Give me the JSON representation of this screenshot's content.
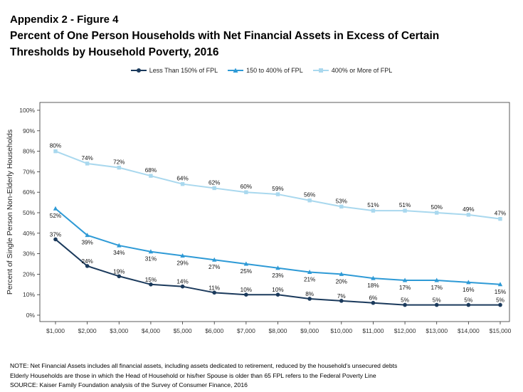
{
  "title_lines": [
    "Appendix 2 - Figure 4",
    "Percent of One Person Households with Net Financial Assets in Excess of Certain",
    "Thresholds by Household Poverty, 2016"
  ],
  "notes": [
    "NOTE: Net Financial Assets includes all financial assets, including assets dedicated to retirement, reduced by the household's unsecured debts",
    "Elderly Households are those in which the Head of Household or his/her Spouse is older than 65 FPL refers to the Federal Poverty Line",
    "SOURCE: Kaiser Family Foundation analysis of the Survey of Consumer Finance, 2016"
  ],
  "chart_data": {
    "type": "line",
    "title": "Percent of One Person Households with Net Financial Assets in Excess of Certain Thresholds by Household Poverty, 2016",
    "xlabel": "",
    "ylabel": "Percent of Single Person Non-Elderly Households",
    "categories": [
      "$1,000",
      "$2,000",
      "$3,000",
      "$4,000",
      "$5,000",
      "$6,000",
      "$7,000",
      "$8,000",
      "$9,000",
      "$10,000",
      "$11,000",
      "$12,000",
      "$13,000",
      "$14,000",
      "$15,000"
    ],
    "yticks": [
      "0%",
      "10%",
      "20%",
      "30%",
      "40%",
      "50%",
      "60%",
      "70%",
      "80%",
      "90%",
      "100%"
    ],
    "ylim": [
      0,
      100
    ],
    "grid": false,
    "legend_position": "top",
    "series": [
      {
        "name": "Less Than 150% of FPL",
        "color": "#1b3a5c",
        "marker": "circle",
        "values": [
          37,
          24,
          19,
          15,
          14,
          11,
          10,
          10,
          8,
          7,
          6,
          5,
          5,
          5,
          5
        ],
        "labels": [
          "37%",
          "24%",
          "19%",
          "15%",
          "14%",
          "11%",
          "10%",
          "10%",
          "8%",
          "7%",
          "6%",
          "5%",
          "5%",
          "5%",
          "5%"
        ]
      },
      {
        "name": "150 to 400% of FPL",
        "color": "#2e9ad6",
        "marker": "triangle",
        "values": [
          52,
          39,
          34,
          31,
          29,
          27,
          25,
          23,
          21,
          20,
          18,
          17,
          17,
          16,
          15
        ],
        "labels": [
          "52%",
          "39%",
          "34%",
          "31%",
          "29%",
          "27%",
          "25%",
          "23%",
          "21%",
          "20%",
          "18%",
          "17%",
          "17%",
          "16%",
          "15%"
        ]
      },
      {
        "name": "400% or More of FPL",
        "color": "#a9d8ee",
        "marker": "square",
        "values": [
          80,
          74,
          72,
          68,
          64,
          62,
          60,
          59,
          56,
          53,
          51,
          51,
          50,
          49,
          47
        ],
        "labels": [
          "80%",
          "74%",
          "72%",
          "68%",
          "64%",
          "62%",
          "60%",
          "59%",
          "56%",
          "53%",
          "51%",
          "51%",
          "50%",
          "49%",
          "47%"
        ]
      }
    ]
  }
}
